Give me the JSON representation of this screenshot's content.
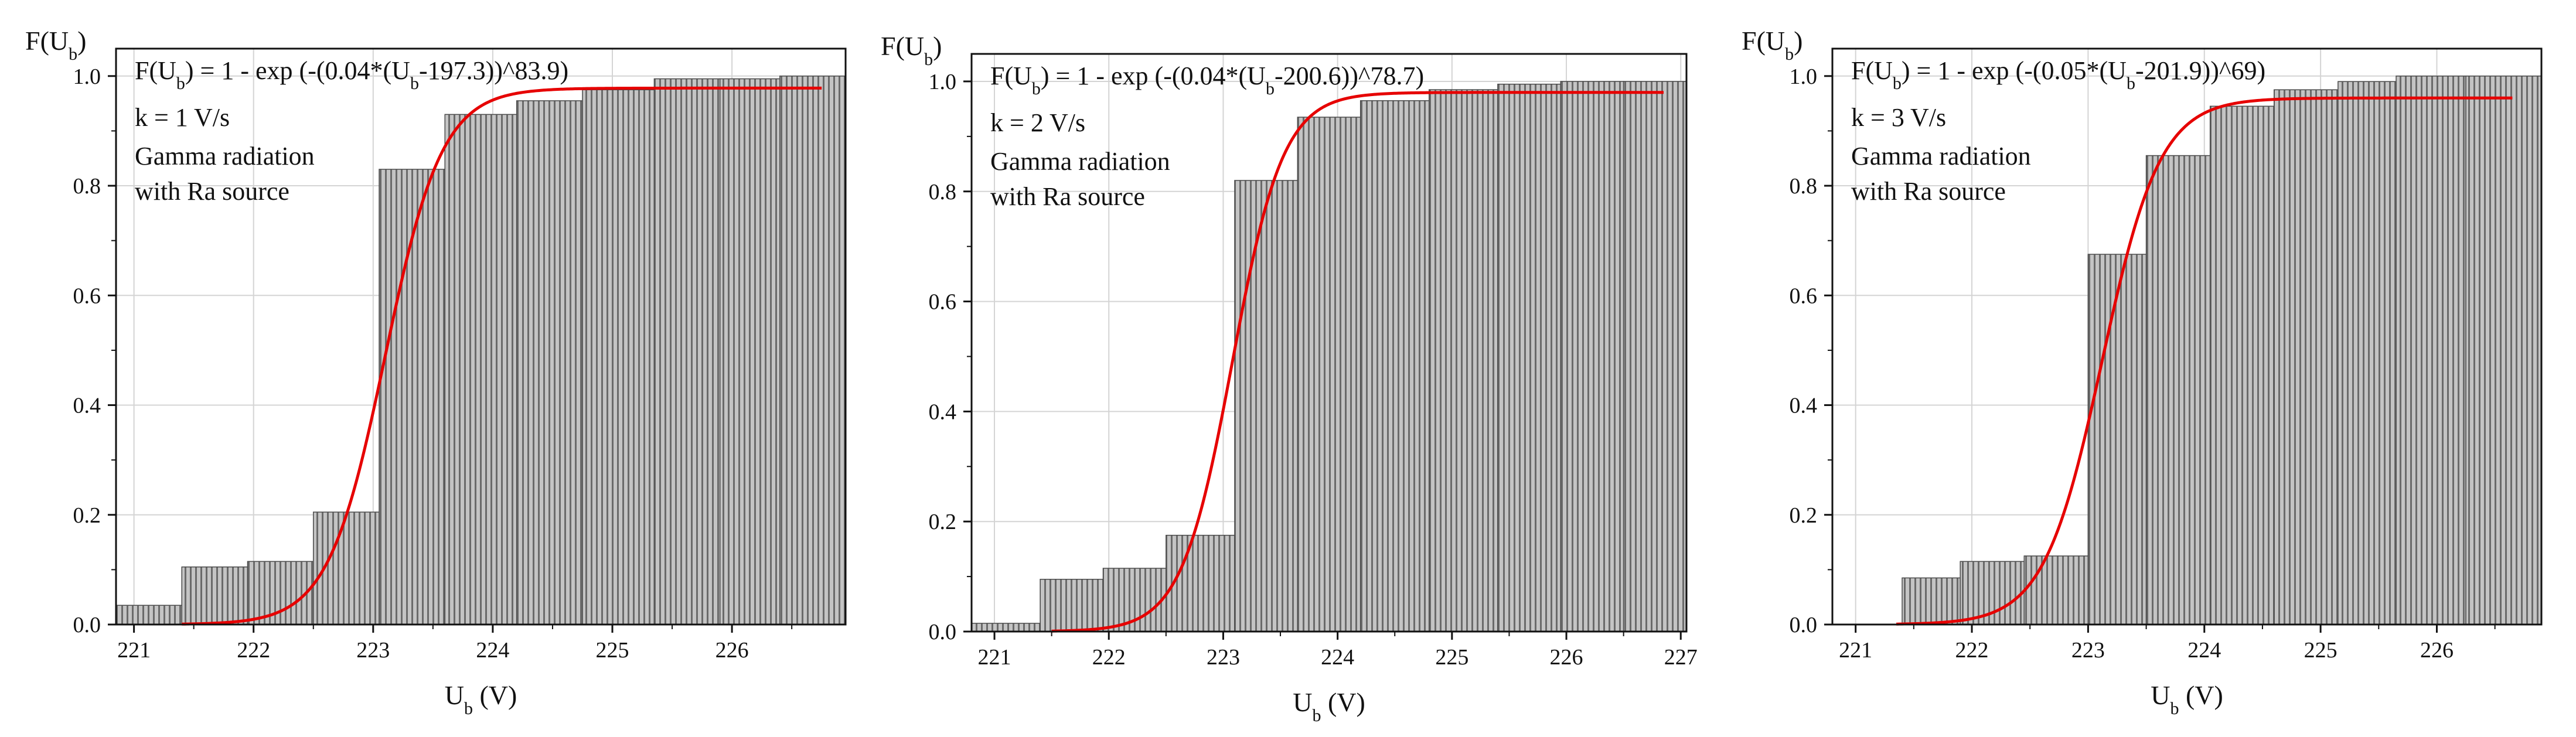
{
  "chart_data": [
    {
      "type": "bar",
      "subtype": "empirical-cdf-histogram-with-fit",
      "ylabel_main": "F(U",
      "ylabel_sub": "b",
      "ylabel_end": ")",
      "xlabel_main": "U",
      "xlabel_sub": "b",
      "xlabel_end": " (V)",
      "formula": {
        "pre": "F(U",
        "sub1": "b",
        "mid": ") = 1 - exp (-(0.04*(U",
        "sub2": "b",
        "post": "-197.3))^83.9)"
      },
      "rate": "k = 1 V/s",
      "note_line1": "Gamma radiation",
      "note_line2": "with Ra source",
      "xlim": [
        220.85,
        226.95
      ],
      "ylim": [
        0,
        1.05
      ],
      "xticks": [
        221,
        222,
        223,
        224,
        225,
        226
      ],
      "xtick_labels": [
        "221",
        "222",
        "223",
        "224",
        "225",
        "226"
      ],
      "yticks": [
        0,
        0.2,
        0.4,
        0.6,
        0.8,
        1.0
      ],
      "ytick_labels": [
        "0.0",
        "0.2",
        "0.4",
        "0.6",
        "0.8",
        "1.0"
      ],
      "bins": [
        {
          "from": 220.85,
          "to": 221.4,
          "value": 0.035
        },
        {
          "from": 221.4,
          "to": 221.95,
          "value": 0.105
        },
        {
          "from": 221.95,
          "to": 222.5,
          "value": 0.115
        },
        {
          "from": 222.5,
          "to": 223.05,
          "value": 0.205
        },
        {
          "from": 223.05,
          "to": 223.6,
          "value": 0.83
        },
        {
          "from": 223.6,
          "to": 224.2,
          "value": 0.93
        },
        {
          "from": 224.2,
          "to": 224.75,
          "value": 0.955
        },
        {
          "from": 224.75,
          "to": 225.35,
          "value": 0.975
        },
        {
          "from": 225.35,
          "to": 225.9,
          "value": 0.995
        },
        {
          "from": 225.9,
          "to": 226.4,
          "value": 0.995
        },
        {
          "from": 226.4,
          "to": 226.95,
          "value": 1.0
        }
      ],
      "fit": {
        "center": 223.1,
        "slope": 4.2,
        "plateau": 0.978,
        "x_start": 221.4,
        "x_end": 226.75
      },
      "grid": true,
      "bar_color": "#a8a8a8",
      "fit_color": "#e60000"
    },
    {
      "type": "bar",
      "subtype": "empirical-cdf-histogram-with-fit",
      "ylabel_main": "F(U",
      "ylabel_sub": "b",
      "ylabel_end": ")",
      "xlabel_main": "U",
      "xlabel_sub": "b",
      "xlabel_end": " (V)",
      "formula": {
        "pre": "F(U",
        "sub1": "b",
        "mid": ") = 1 - exp (-(0.04*(U",
        "sub2": "b",
        "post": "-200.6))^78.7)"
      },
      "rate": "k = 2 V/s",
      "note_line1": "Gamma radiation",
      "note_line2": "with Ra source",
      "xlim": [
        220.8,
        227.05
      ],
      "ylim": [
        0,
        1.05
      ],
      "xticks": [
        221,
        222,
        223,
        224,
        225,
        226,
        227
      ],
      "xtick_labels": [
        "221",
        "222",
        "223",
        "224",
        "225",
        "226",
        "227"
      ],
      "yticks": [
        0,
        0.2,
        0.4,
        0.6,
        0.8,
        1.0
      ],
      "ytick_labels": [
        "0.0",
        "0.2",
        "0.4",
        "0.6",
        "0.8",
        "1.0"
      ],
      "bins": [
        {
          "from": 220.8,
          "to": 221.4,
          "value": 0.015
        },
        {
          "from": 221.4,
          "to": 221.95,
          "value": 0.095
        },
        {
          "from": 221.95,
          "to": 222.5,
          "value": 0.115
        },
        {
          "from": 222.5,
          "to": 223.1,
          "value": 0.175
        },
        {
          "from": 223.1,
          "to": 223.65,
          "value": 0.82
        },
        {
          "from": 223.65,
          "to": 224.2,
          "value": 0.935
        },
        {
          "from": 224.2,
          "to": 224.8,
          "value": 0.965
        },
        {
          "from": 224.8,
          "to": 225.4,
          "value": 0.985
        },
        {
          "from": 225.4,
          "to": 225.95,
          "value": 0.995
        },
        {
          "from": 225.95,
          "to": 226.5,
          "value": 1.0
        },
        {
          "from": 226.5,
          "to": 227.05,
          "value": 1.0
        }
      ],
      "fit": {
        "center": 223.08,
        "slope": 4.5,
        "plateau": 0.98,
        "x_start": 221.5,
        "x_end": 226.85
      },
      "grid": true,
      "bar_color": "#a8a8a8",
      "fit_color": "#e60000"
    },
    {
      "type": "bar",
      "subtype": "empirical-cdf-histogram-with-fit",
      "ylabel_main": "F(U",
      "ylabel_sub": "b",
      "ylabel_end": ")",
      "xlabel_main": "U",
      "xlabel_sub": "b",
      "xlabel_end": " (V)",
      "formula": {
        "pre": "F(U",
        "sub1": "b",
        "mid": ") = 1 - exp (-(0.05*(U",
        "sub2": "b",
        "post": "-201.9))^69)"
      },
      "rate": "k = 3 V/s",
      "note_line1": "Gamma radiation",
      "note_line2": "with Ra source",
      "xlim": [
        220.8,
        226.9
      ],
      "ylim": [
        0,
        1.05
      ],
      "xticks": [
        221,
        222,
        223,
        224,
        225,
        226
      ],
      "xtick_labels": [
        "221",
        "222",
        "223",
        "224",
        "225",
        "226"
      ],
      "yticks": [
        0,
        0.2,
        0.4,
        0.6,
        0.8,
        1.0
      ],
      "ytick_labels": [
        "0.0",
        "0.2",
        "0.4",
        "0.6",
        "0.8",
        "1.0"
      ],
      "bins": [
        {
          "from": 221.4,
          "to": 221.9,
          "value": 0.085
        },
        {
          "from": 221.9,
          "to": 222.45,
          "value": 0.115
        },
        {
          "from": 222.45,
          "to": 223.0,
          "value": 0.125
        },
        {
          "from": 223.0,
          "to": 223.5,
          "value": 0.675
        },
        {
          "from": 223.5,
          "to": 224.05,
          "value": 0.855
        },
        {
          "from": 224.05,
          "to": 224.6,
          "value": 0.945
        },
        {
          "from": 224.6,
          "to": 225.15,
          "value": 0.975
        },
        {
          "from": 225.15,
          "to": 225.65,
          "value": 0.99
        },
        {
          "from": 225.65,
          "to": 226.25,
          "value": 1.0
        },
        {
          "from": 226.25,
          "to": 226.9,
          "value": 1.0
        }
      ],
      "fit": {
        "center": 223.12,
        "slope": 4.0,
        "plateau": 0.96,
        "x_start": 221.35,
        "x_end": 226.65
      },
      "grid": true,
      "bar_color": "#a8a8a8",
      "fit_color": "#e60000"
    }
  ]
}
